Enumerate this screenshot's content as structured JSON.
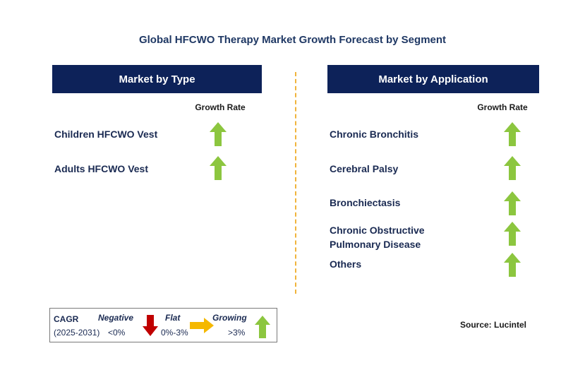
{
  "title": "Global HFCWO Therapy Market Growth Forecast by Segment",
  "left_panel": {
    "header": "Market by Type",
    "growth_label": "Growth Rate",
    "items": [
      {
        "label_lines": [
          "Children HFCWO Vest"
        ],
        "trend": "growing"
      },
      {
        "label_lines": [
          "Adults HFCWO Vest"
        ],
        "trend": "growing"
      }
    ]
  },
  "right_panel": {
    "header": "Market by Application",
    "growth_label": "Growth Rate",
    "items": [
      {
        "label_lines": [
          "Chronic Bronchitis"
        ],
        "trend": "growing"
      },
      {
        "label_lines": [
          "Cerebral Palsy"
        ],
        "trend": "growing"
      },
      {
        "label_lines": [
          "Bronchiectasis"
        ],
        "trend": "growing"
      },
      {
        "label_lines": [
          "Chronic Obstructive",
          "Pulmonary Disease"
        ],
        "trend": "growing"
      },
      {
        "label_lines": [
          "Others"
        ],
        "trend": "growing"
      }
    ]
  },
  "legend": {
    "cagr_label": "CAGR",
    "period": "(2025-2031)",
    "negative_label": "Negative",
    "negative_range": "<0%",
    "flat_label": "Flat",
    "flat_range": "0%-3%",
    "growing_label": "Growing",
    "growing_range": ">3%"
  },
  "source": "Source: Lucintel",
  "colors": {
    "header_bg": "#0d2259",
    "growing_arrow": "#8cc63f",
    "negative_arrow": "#c00000",
    "flat_arrow": "#f5b800",
    "divider": "#f0b43c"
  },
  "icons": {
    "growing": "up-arrow-icon",
    "negative": "down-arrow-icon",
    "flat": "right-arrow-icon"
  }
}
